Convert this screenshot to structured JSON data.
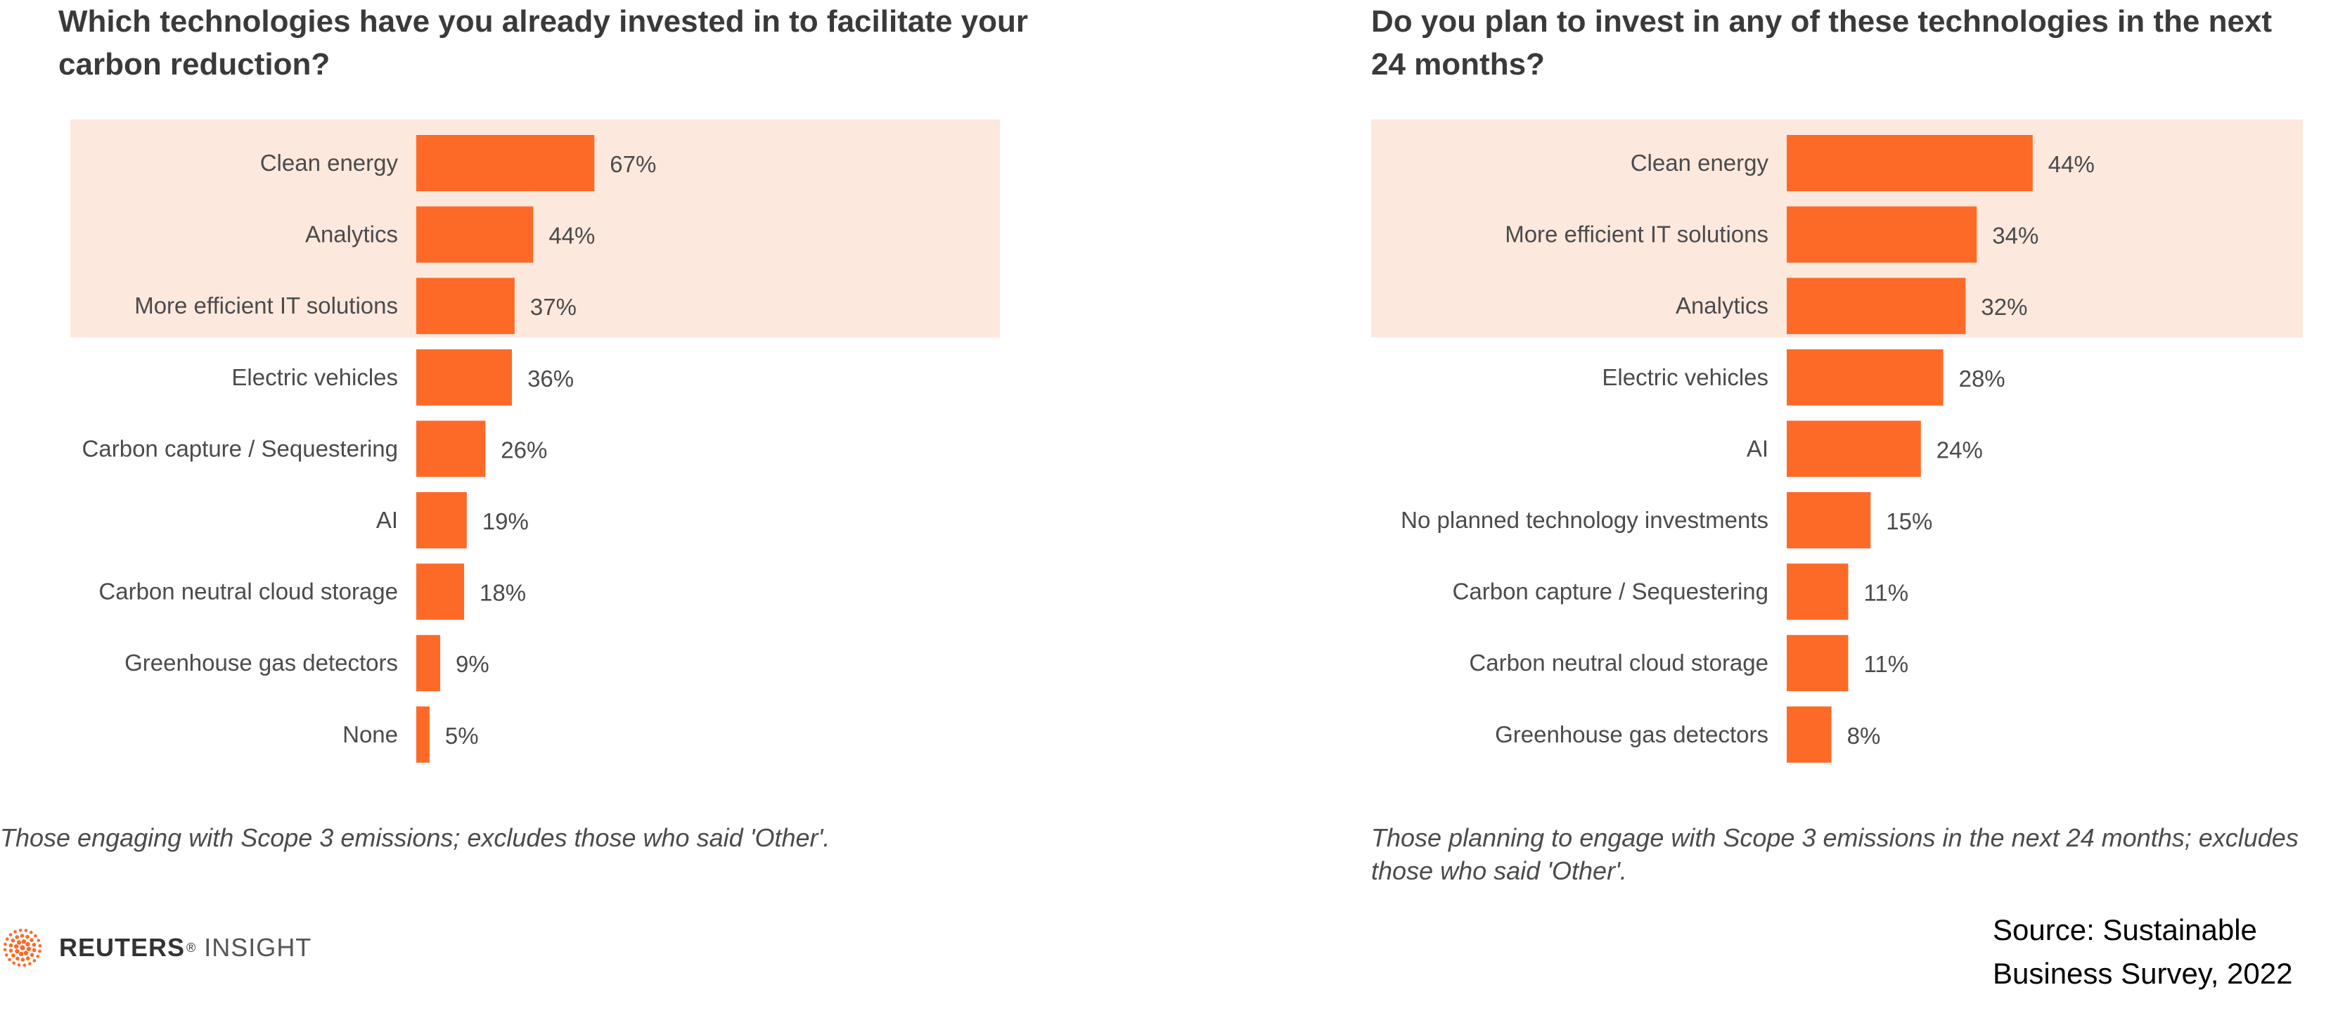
{
  "colors": {
    "bar": "#fd6a28",
    "highlight": "#fde8de",
    "text": "#4b4b4b"
  },
  "chart_data": [
    {
      "type": "bar",
      "orientation": "horizontal",
      "title": "Which technologies have you already invested in to facilitate your carbon reduction?",
      "categories": [
        "Clean energy",
        "Analytics",
        "More efficient IT solutions",
        "Electric vehicles",
        "Carbon capture / Sequestering",
        "AI",
        "Carbon neutral cloud storage",
        "Greenhouse gas detectors",
        "None"
      ],
      "values": [
        67,
        44,
        37,
        36,
        26,
        19,
        18,
        9,
        5
      ],
      "value_labels": [
        "67%",
        "44%",
        "37%",
        "36%",
        "26%",
        "19%",
        "18%",
        "9%",
        "5%"
      ],
      "highlighted_rows": 3,
      "xlim": [
        0,
        100
      ],
      "xlabel": "",
      "ylabel": "",
      "grid": false,
      "note": "Those engaging with Scope 3 emissions; excludes those who said 'Other'."
    },
    {
      "type": "bar",
      "orientation": "horizontal",
      "title": "Do you plan to invest in any of these technologies in the next 24 months?",
      "categories": [
        "Clean energy",
        "More efficient IT solutions",
        "Analytics",
        "Electric vehicles",
        "AI",
        "No planned technology investments",
        "Carbon capture / Sequestering",
        "Carbon neutral cloud storage",
        "Greenhouse gas detectors"
      ],
      "values": [
        44,
        34,
        32,
        28,
        24,
        15,
        11,
        11,
        8
      ],
      "value_labels": [
        "44%",
        "34%",
        "32%",
        "28%",
        "24%",
        "15%",
        "11%",
        "11%",
        "8%"
      ],
      "highlighted_rows": 3,
      "xlim": [
        0,
        100
      ],
      "xlabel": "",
      "ylabel": "",
      "grid": false,
      "note": "Those planning to engage with Scope 3 emissions in the next 24 months; excludes those who said 'Other'."
    }
  ],
  "logo": {
    "brand": "REUTERS",
    "reg": "®",
    "product": "INSIGHT",
    "icon": "reuters-dot-circle-icon"
  },
  "source": "Source: Sustainable Business Survey, 2022"
}
